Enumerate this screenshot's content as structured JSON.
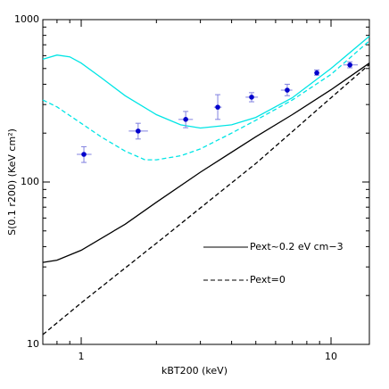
{
  "chart_data": {
    "type": "line",
    "xlabel": "kBT200 (keV)",
    "ylabel": "S(0.1 r200) (KeV cm²)",
    "xlog": true,
    "ylog": true,
    "xlim": [
      0.702,
      14.24
    ],
    "ylim": [
      10,
      1000
    ],
    "xticks": [
      1,
      10
    ],
    "yticks": [
      10,
      100,
      1000
    ],
    "series": [
      {
        "color": "#00e5e5",
        "dash": false,
        "x": [
          0.702,
          0.8,
          0.9,
          1.0,
          1.2,
          1.5,
          2,
          2.5,
          3,
          4,
          5,
          7,
          10,
          14.24
        ],
        "values": [
          570,
          605,
          590,
          540,
          440,
          340,
          260,
          225,
          215,
          225,
          250,
          330,
          500,
          790
        ]
      },
      {
        "color": "#00e5e5",
        "dash": true,
        "x": [
          0.702,
          0.8,
          1.0,
          1.2,
          1.5,
          1.8,
          2,
          2.5,
          3,
          4,
          5,
          7,
          10,
          14.24
        ],
        "values": [
          320,
          290,
          230,
          190,
          155,
          137,
          137,
          145,
          160,
          200,
          240,
          320,
          460,
          740
        ]
      },
      {
        "name": "Pext~0.2 eV cm−3",
        "color": "#000000",
        "dash": false,
        "x": [
          0.702,
          0.8,
          1,
          1.5,
          2,
          3,
          5,
          7,
          10,
          14.24
        ],
        "values": [
          32,
          33,
          38,
          55,
          75,
          115,
          190,
          260,
          370,
          540
        ]
      },
      {
        "name": "Pext=0",
        "color": "#000000",
        "dash": true,
        "x": [
          0.702,
          1,
          2,
          5,
          10,
          14.24
        ],
        "values": [
          11.5,
          18,
          42,
          130,
          330,
          530
        ]
      }
    ],
    "points": {
      "color": "#0000cc",
      "errcolor": "#8080e0",
      "x": [
        1.025,
        1.69,
        2.62,
        3.52,
        4.81,
        6.68,
        8.77,
        11.9
      ],
      "xlow": [
        0.96,
        1.55,
        2.45,
        3.4,
        4.55,
        6.3,
        8.6,
        11.2
      ],
      "xhigh": [
        1.1,
        1.85,
        2.8,
        3.65,
        5.1,
        7.0,
        8.95,
        12.8
      ],
      "values": [
        148,
        206,
        243,
        289,
        333,
        368,
        470,
        526
      ],
      "ylow": [
        132,
        184,
        216,
        243,
        312,
        340,
        455,
        505
      ],
      "yhigh": [
        165,
        230,
        272,
        345,
        355,
        400,
        490,
        550
      ]
    }
  }
}
